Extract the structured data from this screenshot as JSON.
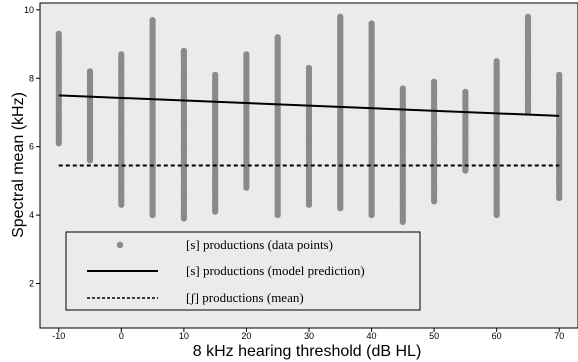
{
  "chart_data": {
    "type": "scatter",
    "xlabel": "8 kHz hearing threshold (dB HL)",
    "ylabel": "Spectral mean (kHz)",
    "xlim": [
      -13,
      73
    ],
    "ylim": [
      0.7,
      10.2
    ],
    "x_ticks": [
      -10,
      0,
      10,
      20,
      30,
      40,
      50,
      60,
      70
    ],
    "y_ticks": [
      2,
      4,
      6,
      8,
      10
    ],
    "grid": false,
    "legend_placement": "bottom-left",
    "colors": {
      "points": "#8a8a8a",
      "background": "#ebebeb",
      "lines": "#000000"
    },
    "series": [
      {
        "name": "[s] productions (data points)",
        "kind": "points",
        "columns": [
          {
            "x": -10,
            "ymin": 6.1,
            "ymax": 9.3
          },
          {
            "x": -5,
            "ymin": 5.6,
            "ymax": 8.2
          },
          {
            "x": 0,
            "ymin": 4.3,
            "ymax": 8.7
          },
          {
            "x": 5,
            "ymin": 4.0,
            "ymax": 9.7
          },
          {
            "x": 10,
            "ymin": 3.9,
            "ymax": 8.8
          },
          {
            "x": 15,
            "ymin": 4.1,
            "ymax": 8.1
          },
          {
            "x": 20,
            "ymin": 4.8,
            "ymax": 8.7
          },
          {
            "x": 25,
            "ymin": 4.0,
            "ymax": 9.2
          },
          {
            "x": 30,
            "ymin": 4.3,
            "ymax": 8.3
          },
          {
            "x": 35,
            "ymin": 4.2,
            "ymax": 9.8
          },
          {
            "x": 40,
            "ymin": 4.0,
            "ymax": 9.6
          },
          {
            "x": 45,
            "ymin": 3.8,
            "ymax": 7.7
          },
          {
            "x": 50,
            "ymin": 4.4,
            "ymax": 7.9
          },
          {
            "x": 55,
            "ymin": 5.3,
            "ymax": 7.6
          },
          {
            "x": 60,
            "ymin": 4.0,
            "ymax": 8.5
          },
          {
            "x": 65,
            "ymin": 7.0,
            "ymax": 9.8
          },
          {
            "x": 70,
            "ymin": 4.5,
            "ymax": 8.1
          }
        ]
      },
      {
        "name": "[s] productions (model prediction)",
        "kind": "line",
        "x": [
          -10,
          70
        ],
        "y": [
          7.5,
          6.9
        ]
      },
      {
        "name": "[ʃ] productions (mean)",
        "kind": "dashed-line",
        "x": [
          -10,
          70
        ],
        "y": [
          5.45,
          5.45
        ]
      }
    ]
  }
}
